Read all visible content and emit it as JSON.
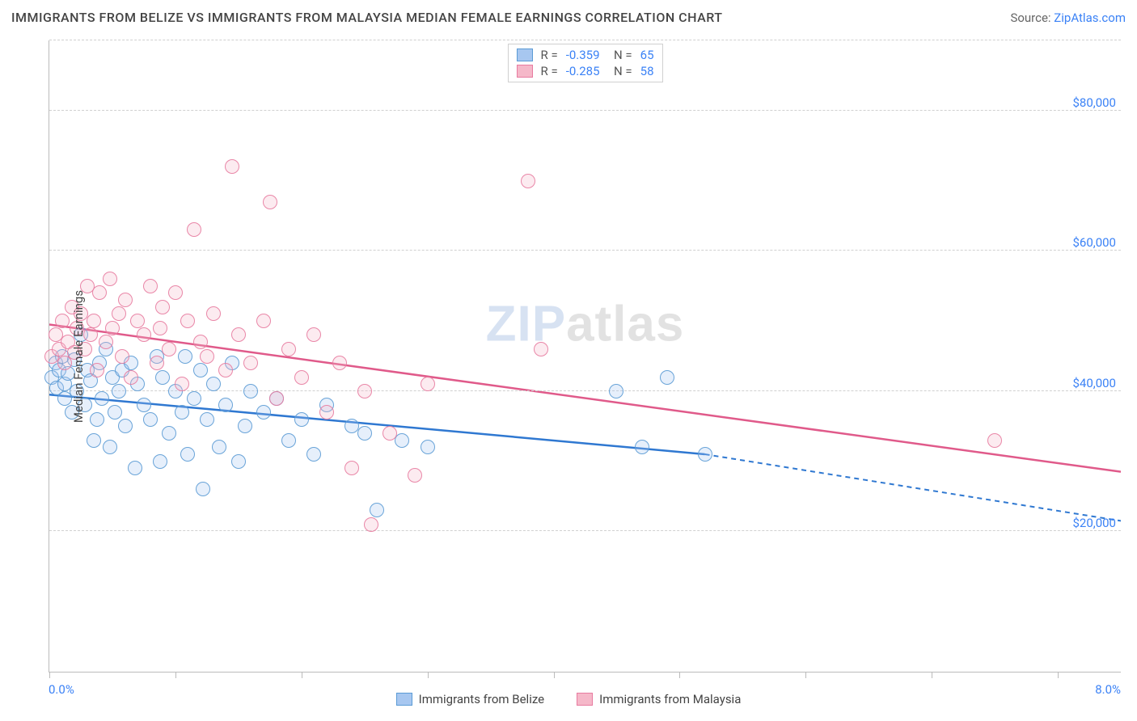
{
  "title": "IMMIGRANTS FROM BELIZE VS IMMIGRANTS FROM MALAYSIA MEDIAN FEMALE EARNINGS CORRELATION CHART",
  "source_prefix": "Source: ",
  "source_link": "ZipAtlas.com",
  "watermark_a": "ZIP",
  "watermark_b": "atlas",
  "chart": {
    "type": "scatter",
    "ylabel": "Median Female Earnings",
    "xlim": [
      0,
      8.5
    ],
    "ylim": [
      0,
      90000
    ],
    "xaxis_min_label": "0.0%",
    "xaxis_max_label": "8.0%",
    "xtick_positions": [
      0,
      1,
      2,
      3,
      4,
      5,
      6,
      7,
      8
    ],
    "ygridlines": [
      20000,
      40000,
      60000,
      80000
    ],
    "ytick_labels": [
      "$20,000",
      "$40,000",
      "$60,000",
      "$80,000"
    ],
    "grid_color": "#d0d0d0",
    "axis_color": "#bbbbbb",
    "background_color": "#ffffff",
    "label_fontsize": 15,
    "title_fontsize": 16,
    "marker_radius": 9,
    "marker_fill_opacity": 0.28,
    "marker_stroke_opacity": 0.9,
    "series": [
      {
        "name": "Immigrants from Belize",
        "fill": "#a7c7f0",
        "stroke": "#5b9bd5",
        "trend_color": "#2f78d1",
        "R": "-0.359",
        "N": "65",
        "trend": {
          "x1": 0.0,
          "y1": 39500,
          "x2": 5.2,
          "y2": 31000,
          "x2_dash": 8.5,
          "y2_dash": 21500
        },
        "points": [
          [
            0.02,
            42000
          ],
          [
            0.05,
            44000
          ],
          [
            0.06,
            40500
          ],
          [
            0.08,
            43000
          ],
          [
            0.1,
            45000
          ],
          [
            0.12,
            41000
          ],
          [
            0.12,
            39000
          ],
          [
            0.15,
            42500
          ],
          [
            0.18,
            37000
          ],
          [
            0.2,
            44500
          ],
          [
            0.22,
            40000
          ],
          [
            0.25,
            48000
          ],
          [
            0.28,
            38000
          ],
          [
            0.3,
            43000
          ],
          [
            0.33,
            41500
          ],
          [
            0.35,
            33000
          ],
          [
            0.38,
            36000
          ],
          [
            0.4,
            44000
          ],
          [
            0.42,
            39000
          ],
          [
            0.45,
            46000
          ],
          [
            0.48,
            32000
          ],
          [
            0.5,
            42000
          ],
          [
            0.52,
            37000
          ],
          [
            0.55,
            40000
          ],
          [
            0.58,
            43000
          ],
          [
            0.6,
            35000
          ],
          [
            0.65,
            44000
          ],
          [
            0.68,
            29000
          ],
          [
            0.7,
            41000
          ],
          [
            0.75,
            38000
          ],
          [
            0.8,
            36000
          ],
          [
            0.85,
            45000
          ],
          [
            0.88,
            30000
          ],
          [
            0.9,
            42000
          ],
          [
            0.95,
            34000
          ],
          [
            1.0,
            40000
          ],
          [
            1.05,
            37000
          ],
          [
            1.08,
            45000
          ],
          [
            1.1,
            31000
          ],
          [
            1.15,
            39000
          ],
          [
            1.2,
            43000
          ],
          [
            1.22,
            26000
          ],
          [
            1.25,
            36000
          ],
          [
            1.3,
            41000
          ],
          [
            1.35,
            32000
          ],
          [
            1.4,
            38000
          ],
          [
            1.45,
            44000
          ],
          [
            1.5,
            30000
          ],
          [
            1.55,
            35000
          ],
          [
            1.6,
            40000
          ],
          [
            1.7,
            37000
          ],
          [
            1.8,
            39000
          ],
          [
            1.9,
            33000
          ],
          [
            2.0,
            36000
          ],
          [
            2.1,
            31000
          ],
          [
            2.2,
            38000
          ],
          [
            2.4,
            35000
          ],
          [
            2.5,
            34000
          ],
          [
            2.6,
            23000
          ],
          [
            2.8,
            33000
          ],
          [
            3.0,
            32000
          ],
          [
            4.7,
            32000
          ],
          [
            4.9,
            42000
          ],
          [
            5.2,
            31000
          ],
          [
            4.5,
            40000
          ]
        ]
      },
      {
        "name": "Immigrants from Malaysia",
        "fill": "#f5b8c9",
        "stroke": "#e87ba0",
        "trend_color": "#e05a8a",
        "R": "-0.285",
        "N": "58",
        "trend": {
          "x1": 0.0,
          "y1": 49500,
          "x2": 8.5,
          "y2": 28500,
          "x2_dash": 8.5,
          "y2_dash": 28500
        },
        "points": [
          [
            0.02,
            45000
          ],
          [
            0.05,
            48000
          ],
          [
            0.08,
            46000
          ],
          [
            0.1,
            50000
          ],
          [
            0.12,
            44000
          ],
          [
            0.15,
            47000
          ],
          [
            0.18,
            52000
          ],
          [
            0.2,
            45500
          ],
          [
            0.22,
            49000
          ],
          [
            0.25,
            51000
          ],
          [
            0.28,
            46000
          ],
          [
            0.3,
            55000
          ],
          [
            0.33,
            48000
          ],
          [
            0.35,
            50000
          ],
          [
            0.38,
            43000
          ],
          [
            0.4,
            54000
          ],
          [
            0.45,
            47000
          ],
          [
            0.48,
            56000
          ],
          [
            0.5,
            49000
          ],
          [
            0.55,
            51000
          ],
          [
            0.58,
            45000
          ],
          [
            0.6,
            53000
          ],
          [
            0.65,
            42000
          ],
          [
            0.7,
            50000
          ],
          [
            0.75,
            48000
          ],
          [
            0.8,
            55000
          ],
          [
            0.85,
            44000
          ],
          [
            0.88,
            49000
          ],
          [
            0.9,
            52000
          ],
          [
            0.95,
            46000
          ],
          [
            1.0,
            54000
          ],
          [
            1.05,
            41000
          ],
          [
            1.1,
            50000
          ],
          [
            1.15,
            63000
          ],
          [
            1.2,
            47000
          ],
          [
            1.25,
            45000
          ],
          [
            1.3,
            51000
          ],
          [
            1.4,
            43000
          ],
          [
            1.45,
            72000
          ],
          [
            1.5,
            48000
          ],
          [
            1.6,
            44000
          ],
          [
            1.7,
            50000
          ],
          [
            1.75,
            67000
          ],
          [
            1.8,
            39000
          ],
          [
            1.9,
            46000
          ],
          [
            2.0,
            42000
          ],
          [
            2.1,
            48000
          ],
          [
            2.2,
            37000
          ],
          [
            2.3,
            44000
          ],
          [
            2.4,
            29000
          ],
          [
            2.5,
            40000
          ],
          [
            2.55,
            21000
          ],
          [
            2.7,
            34000
          ],
          [
            2.9,
            28000
          ],
          [
            3.0,
            41000
          ],
          [
            3.8,
            70000
          ],
          [
            3.9,
            46000
          ],
          [
            7.5,
            33000
          ]
        ]
      }
    ]
  },
  "legend": {
    "series1_label": "Immigrants from Belize",
    "series2_label": "Immigrants from Malaysia"
  }
}
